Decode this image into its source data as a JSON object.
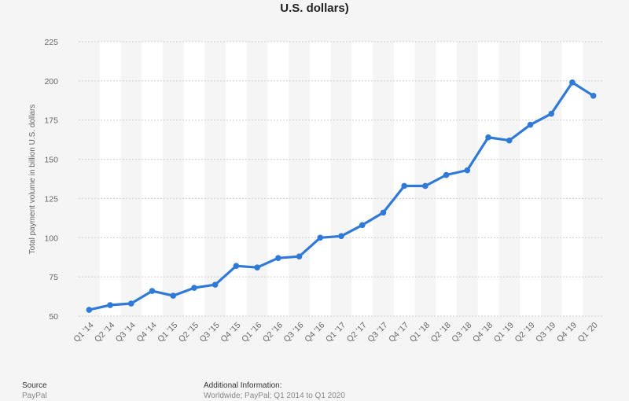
{
  "chart_data": {
    "type": "line",
    "title": "U.S. dollars)",
    "ylabel": "Total payment volume in billion U.S. dollars",
    "xlabel": "",
    "categories": [
      "Q1 '14",
      "Q2 '14",
      "Q3 '14",
      "Q4 '14",
      "Q1 '15",
      "Q2 '15",
      "Q3 '15",
      "Q4 '15",
      "Q1 '16",
      "Q2 '16",
      "Q3 '16",
      "Q4 '16",
      "Q1 '17",
      "Q2 '17",
      "Q3 '17",
      "Q4 '17",
      "Q1 '18",
      "Q2 '18",
      "Q3 '18",
      "Q4 '18",
      "Q1 '19",
      "Q2 '19",
      "Q3 '19",
      "Q4 '19",
      "Q1 '20"
    ],
    "values": [
      54,
      57,
      58,
      66,
      63,
      68,
      70,
      82,
      81,
      87,
      88,
      100,
      101,
      108,
      116,
      133,
      133,
      140,
      143,
      164,
      162,
      172,
      179,
      199,
      190.5
    ],
    "ylim": [
      50,
      225
    ],
    "yticks": [
      50,
      75,
      100,
      125,
      150,
      175,
      200,
      225
    ],
    "grid": true,
    "color": "#2f79d8"
  },
  "footer": {
    "source_head": "Source",
    "source_value": "PayPal",
    "info_head": "Additional Information:",
    "info_value": "Worldwide; PayPal; Q1 2014 to Q1 2020"
  }
}
